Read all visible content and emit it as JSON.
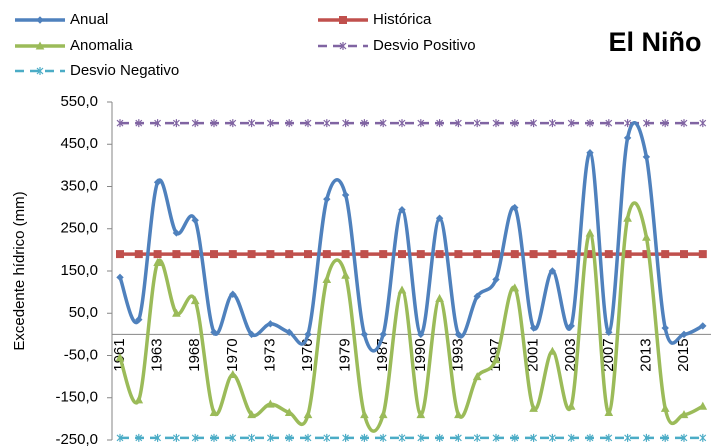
{
  "chart_data": {
    "type": "line",
    "title": "El Niño",
    "y_label": "Excedente hídrico (mm)",
    "categories": [
      "1961",
      null,
      "1963",
      null,
      "1968",
      null,
      "1970",
      null,
      "1973",
      null,
      "1976",
      null,
      "1979",
      null,
      "1987",
      null,
      "1990",
      null,
      "1993",
      null,
      "1997",
      null,
      "2001",
      null,
      "2003",
      null,
      "2007",
      null,
      "2013",
      null,
      "2015",
      null
    ],
    "series": [
      {
        "name": "Anual",
        "color": "#4f81bd",
        "marker": "diamond",
        "dashed": false,
        "values": [
          135,
          35,
          360,
          240,
          270,
          5,
          95,
          0,
          25,
          5,
          0,
          320,
          330,
          0,
          0,
          295,
          0,
          275,
          0,
          90,
          130,
          300,
          15,
          150,
          20,
          430,
          5,
          465,
          420,
          15,
          0,
          20
        ]
      },
      {
        "name": "Histórica",
        "color": "#c0504d",
        "marker": "square",
        "dashed": false,
        "values": [
          190,
          190,
          190,
          190,
          190,
          190,
          190,
          190,
          190,
          190,
          190,
          190,
          190,
          190,
          190,
          190,
          190,
          190,
          190,
          190,
          190,
          190,
          190,
          190,
          190,
          190,
          190,
          190,
          190,
          190,
          190,
          190
        ]
      },
      {
        "name": "Anomalia",
        "color": "#9bbb59",
        "marker": "triangle",
        "dashed": false,
        "values": [
          -55,
          -155,
          170,
          50,
          80,
          -185,
          -95,
          -190,
          -165,
          -185,
          -190,
          130,
          140,
          -190,
          -190,
          105,
          -190,
          85,
          -190,
          -100,
          -60,
          110,
          -175,
          -40,
          -170,
          240,
          -185,
          275,
          230,
          -175,
          -190,
          -170
        ]
      },
      {
        "name": "Desvio Positivo",
        "color": "#8064a2",
        "marker": "x",
        "dashed": true,
        "values": [
          500,
          500,
          500,
          500,
          500,
          500,
          500,
          500,
          500,
          500,
          500,
          500,
          500,
          500,
          500,
          500,
          500,
          500,
          500,
          500,
          500,
          500,
          500,
          500,
          500,
          500,
          500,
          500,
          500,
          500,
          500,
          500
        ]
      },
      {
        "name": "Desvio Negativo",
        "color": "#4bacc6",
        "marker": "x",
        "dashed": true,
        "values": [
          -245,
          -245,
          -245,
          -245,
          -245,
          -245,
          -245,
          -245,
          -245,
          -245,
          -245,
          -245,
          -245,
          -245,
          -245,
          -245,
          -245,
          -245,
          -245,
          -245,
          -245,
          -245,
          -245,
          -245,
          -245,
          -245,
          -245,
          -245,
          -245,
          -245,
          -245,
          -245
        ]
      }
    ],
    "smooth": true,
    "ylim": [
      -250,
      550
    ],
    "yticks": [
      {
        "value": -250,
        "label": "-250,0"
      },
      {
        "value": -150,
        "label": "-150,0"
      },
      {
        "value": -50,
        "label": "-50,0"
      },
      {
        "value": 50,
        "label": "50,0"
      },
      {
        "value": 150,
        "label": "150,0"
      },
      {
        "value": 250,
        "label": "250,0"
      },
      {
        "value": 350,
        "label": "350,0"
      },
      {
        "value": 450,
        "label": "450,0"
      },
      {
        "value": 550,
        "label": "550,0"
      }
    ],
    "grid": false,
    "legend": "top"
  }
}
